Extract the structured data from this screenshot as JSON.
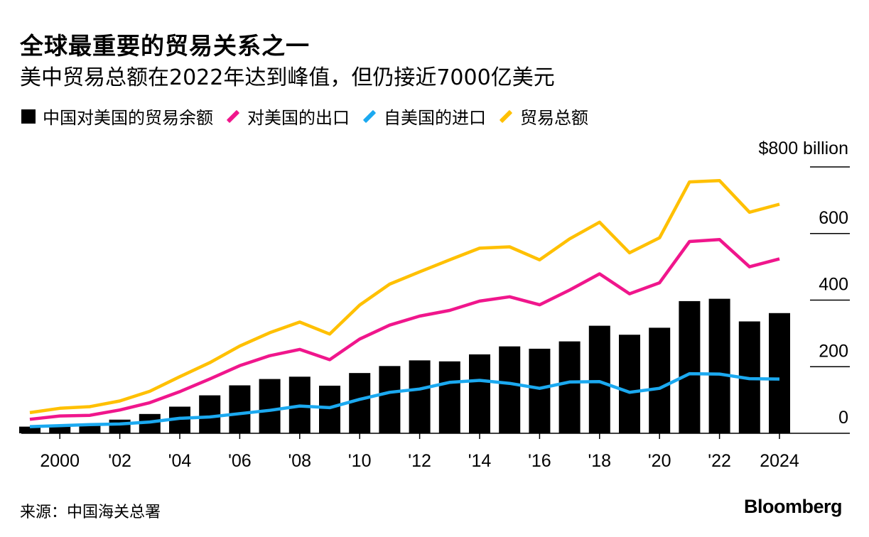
{
  "title": "全球最重要的贸易关系之一",
  "subtitle": "美中贸易总额在2022年达到峰值，但仍接近7000亿美元",
  "legend": [
    {
      "label": "中国对美国的贸易余额",
      "kind": "box",
      "color": "#000000"
    },
    {
      "label": "对美国的出口",
      "kind": "line",
      "color": "#F0168C"
    },
    {
      "label": "自美国的进口",
      "kind": "line",
      "color": "#1BA9F0"
    },
    {
      "label": "贸易总额",
      "kind": "line",
      "color": "#FFC000"
    }
  ],
  "source": "来源：中国海关总署",
  "brand": "Bloomberg",
  "chart_data": {
    "type": "bar+line",
    "x": [
      1999,
      2000,
      2001,
      2002,
      2003,
      2004,
      2005,
      2006,
      2007,
      2008,
      2009,
      2010,
      2011,
      2012,
      2013,
      2014,
      2015,
      2016,
      2017,
      2018,
      2019,
      2020,
      2021,
      2022,
      2023,
      2024
    ],
    "xtick_values": [
      2000,
      2002,
      2004,
      2006,
      2008,
      2010,
      2012,
      2014,
      2016,
      2018,
      2020,
      2022,
      2024
    ],
    "xtick_labels": [
      "2000",
      "'02",
      "'04",
      "'06",
      "'08",
      "'10",
      "'12",
      "'14",
      "'16",
      "'18",
      "'20",
      "'22",
      "2024"
    ],
    "ytick_values": [
      0,
      200,
      400,
      600,
      800
    ],
    "ytick_labels": [
      "0",
      "200",
      "400",
      "600",
      "$800 billion"
    ],
    "ylim": [
      0,
      800
    ],
    "bars": {
      "name": "中国对美国的贸易余额",
      "color": "#000000",
      "values": [
        20,
        26,
        28,
        41,
        58,
        80,
        114,
        144,
        163,
        170,
        143,
        181,
        202,
        219,
        216,
        237,
        261,
        254,
        276,
        323,
        296,
        317,
        397,
        404,
        336,
        361
      ]
    },
    "series": [
      {
        "name": "对美国的出口",
        "color": "#F0168C",
        "values": [
          42,
          52,
          54,
          70,
          92,
          125,
          163,
          203,
          233,
          252,
          221,
          283,
          325,
          352,
          369,
          397,
          410,
          386,
          430,
          479,
          419,
          452,
          576,
          582,
          500,
          524
        ]
      },
      {
        "name": "自美国的进口",
        "color": "#1BA9F0",
        "values": [
          20,
          23,
          26,
          28,
          34,
          45,
          49,
          59,
          69,
          82,
          77,
          102,
          123,
          133,
          153,
          159,
          150,
          135,
          154,
          155,
          123,
          135,
          179,
          178,
          164,
          163
        ]
      },
      {
        "name": "贸易总额",
        "color": "#FFC000",
        "values": [
          62,
          75,
          80,
          97,
          126,
          170,
          212,
          262,
          302,
          334,
          298,
          385,
          448,
          485,
          521,
          556,
          560,
          521,
          584,
          634,
          542,
          587,
          755,
          759,
          664,
          688
        ]
      }
    ]
  }
}
